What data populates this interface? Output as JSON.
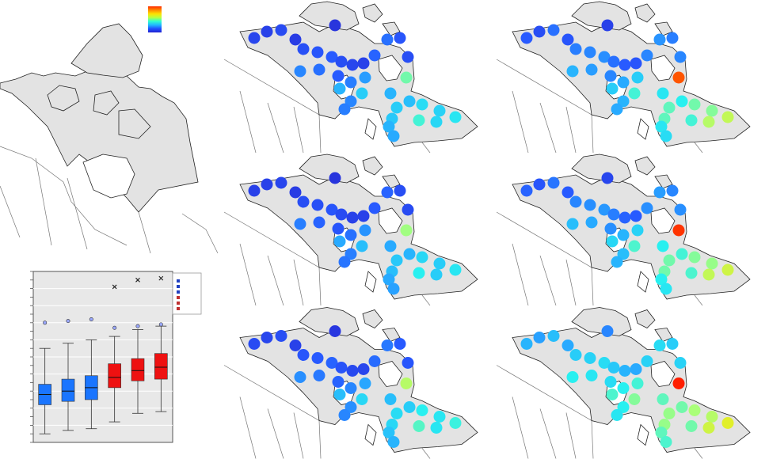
{
  "colors": {
    "land": "#e3e3e3",
    "coast": "#222222",
    "border": "#777777",
    "sea": "#ffffff",
    "box_blue": "#1a75ff",
    "box_red": "#ee1111",
    "plot_bg": "#e8e8e8",
    "gridline": "#ffffff"
  },
  "color_legend": {
    "type": "gradient",
    "from": "red",
    "to": "blue"
  },
  "maps": [
    {
      "id": "map-1",
      "sites": [
        0.12,
        0.1,
        0.14,
        0.08,
        0.05,
        0.16,
        0.18,
        0.2,
        0.15,
        0.12,
        0.1,
        0.22,
        0.25,
        0.18,
        0.15,
        0.3,
        0.25,
        0.2,
        0.28,
        0.35,
        0.6,
        0.4,
        0.45,
        0.3,
        0.28,
        0.4,
        0.42,
        0.45,
        0.48,
        0.46,
        0.5,
        0.55,
        0.44,
        0.4,
        0.38,
        0.47
      ]
    },
    {
      "id": "map-2",
      "sites": [
        0.2,
        0.15,
        0.25,
        0.18,
        0.1,
        0.28,
        0.3,
        0.32,
        0.25,
        0.2,
        0.18,
        0.3,
        0.33,
        0.28,
        0.3,
        0.4,
        0.35,
        0.3,
        0.38,
        0.45,
        0.95,
        0.45,
        0.55,
        0.4,
        0.38,
        0.5,
        0.52,
        0.58,
        0.6,
        0.62,
        0.7,
        0.55,
        0.58,
        0.5,
        0.48,
        0.68
      ]
    },
    {
      "id": "map-3",
      "sites": [
        0.1,
        0.1,
        0.12,
        0.08,
        0.05,
        0.15,
        0.16,
        0.18,
        0.14,
        0.1,
        0.1,
        0.2,
        0.22,
        0.15,
        0.14,
        0.28,
        0.22,
        0.18,
        0.25,
        0.33,
        0.65,
        0.38,
        0.42,
        0.28,
        0.26,
        0.38,
        0.4,
        0.44,
        0.47,
        0.45,
        0.5,
        0.52,
        0.42,
        0.38,
        0.36,
        0.45
      ]
    },
    {
      "id": "map-4",
      "sites": [
        0.22,
        0.18,
        0.26,
        0.2,
        0.12,
        0.3,
        0.32,
        0.34,
        0.28,
        0.22,
        0.2,
        0.32,
        0.35,
        0.3,
        0.32,
        0.42,
        0.38,
        0.32,
        0.4,
        0.46,
        0.98,
        0.47,
        0.56,
        0.42,
        0.4,
        0.52,
        0.55,
        0.6,
        0.62,
        0.64,
        0.72,
        0.56,
        0.6,
        0.52,
        0.5,
        0.7
      ]
    },
    {
      "id": "map-5",
      "sites": [
        0.14,
        0.12,
        0.15,
        0.1,
        0.06,
        0.18,
        0.2,
        0.22,
        0.17,
        0.13,
        0.12,
        0.24,
        0.27,
        0.2,
        0.18,
        0.32,
        0.27,
        0.22,
        0.3,
        0.37,
        0.68,
        0.42,
        0.47,
        0.32,
        0.3,
        0.42,
        0.45,
        0.48,
        0.52,
        0.5,
        0.54,
        0.57,
        0.47,
        0.43,
        0.4,
        0.5
      ]
    },
    {
      "id": "map-6",
      "sites": [
        0.4,
        0.36,
        0.42,
        0.38,
        0.3,
        0.45,
        0.46,
        0.48,
        0.44,
        0.4,
        0.38,
        0.46,
        0.48,
        0.45,
        0.46,
        0.52,
        0.5,
        0.48,
        0.52,
        0.55,
        1.0,
        0.56,
        0.62,
        0.52,
        0.5,
        0.58,
        0.6,
        0.64,
        0.66,
        0.68,
        0.75,
        0.6,
        0.64,
        0.58,
        0.56,
        0.72
      ]
    }
  ],
  "chart_data": {
    "type": "box",
    "series": [
      {
        "color": "blue",
        "q1": 0.22,
        "median": 0.28,
        "q3": 0.34,
        "whisker_low": 0.05,
        "whisker_high": 0.55,
        "outliers": [
          0.7
        ]
      },
      {
        "color": "blue",
        "q1": 0.24,
        "median": 0.3,
        "q3": 0.37,
        "whisker_low": 0.07,
        "whisker_high": 0.58,
        "outliers": [
          0.71
        ]
      },
      {
        "color": "blue",
        "q1": 0.25,
        "median": 0.32,
        "q3": 0.39,
        "whisker_low": 0.08,
        "whisker_high": 0.6,
        "outliers": [
          0.72
        ]
      },
      {
        "color": "red",
        "q1": 0.32,
        "median": 0.38,
        "q3": 0.46,
        "whisker_low": 0.12,
        "whisker_high": 0.62,
        "outliers": [
          0.67,
          0.91
        ]
      },
      {
        "color": "red",
        "q1": 0.36,
        "median": 0.42,
        "q3": 0.49,
        "whisker_low": 0.17,
        "whisker_high": 0.66,
        "outliers": [
          0.68,
          0.95
        ]
      },
      {
        "color": "red",
        "q1": 0.37,
        "median": 0.44,
        "q3": 0.52,
        "whisker_low": 0.18,
        "whisker_high": 0.68,
        "outliers": [
          0.69,
          0.96
        ]
      }
    ],
    "ylim": [
      0,
      1
    ],
    "grid": true,
    "legend": {
      "placement": "right",
      "entries": [
        "blue",
        "blue",
        "blue",
        "red",
        "red",
        "red"
      ]
    }
  }
}
